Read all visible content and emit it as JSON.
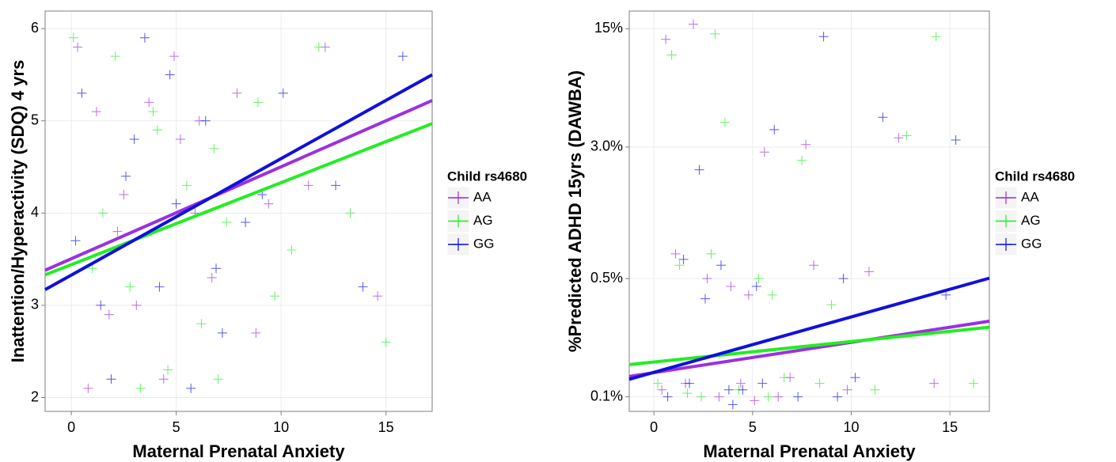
{
  "chart_data": [
    {
      "type": "scatter",
      "x_label": "Maternal Prenatal Anxiety",
      "y_label": "Inattention/Hyperactivity (SDQ) 4 yrs",
      "xlim": [
        -1.25,
        17.2
      ],
      "ylim": [
        1.85,
        6.19
      ],
      "xticks": [
        0,
        5,
        10,
        15
      ],
      "yticks": [
        2,
        3,
        4,
        5,
        6
      ],
      "ylog": false,
      "grid": true,
      "legend_title": "Child rs4680",
      "series": [
        {
          "name": "AA",
          "color": "#9b30e0",
          "x": [
            0.3,
            1.2,
            2.5,
            3.1,
            4.4,
            5.2,
            6.7,
            7.9,
            9.4,
            12.1,
            14.6,
            1.8,
            3.7,
            5.9,
            8.8,
            2.2,
            4.9,
            11.3,
            0.8,
            6.1
          ],
          "y": [
            5.8,
            5.1,
            4.2,
            3.0,
            2.2,
            4.8,
            3.3,
            5.3,
            4.1,
            5.8,
            3.1,
            2.9,
            5.2,
            4.0,
            2.7,
            3.8,
            5.7,
            4.3,
            2.1,
            5.0
          ],
          "fit": {
            "x": [
              -1.25,
              17.2
            ],
            "y": [
              3.38,
              5.22
            ]
          }
        },
        {
          "name": "AG",
          "color": "#22ee22",
          "x": [
            0.1,
            1.5,
            2.8,
            3.9,
            4.6,
            5.5,
            6.2,
            7.4,
            8.9,
            10.5,
            13.3,
            15.0,
            2.1,
            3.3,
            6.8,
            9.7,
            1.0,
            4.1,
            11.8,
            7.0
          ],
          "y": [
            5.9,
            4.0,
            3.2,
            5.1,
            2.3,
            4.3,
            2.8,
            3.9,
            5.2,
            3.6,
            4.0,
            2.6,
            5.7,
            2.1,
            4.7,
            3.1,
            3.4,
            4.9,
            5.8,
            2.2
          ],
          "fit": {
            "x": [
              -1.25,
              17.2
            ],
            "y": [
              3.33,
              4.97
            ]
          }
        },
        {
          "name": "GG",
          "color": "#1010dd",
          "x": [
            0.5,
            1.9,
            2.6,
            3.5,
            4.2,
            5.0,
            6.4,
            7.2,
            8.3,
            10.1,
            12.6,
            15.8,
            1.4,
            3.0,
            5.7,
            9.1,
            0.2,
            4.7,
            13.9,
            6.9
          ],
          "y": [
            5.3,
            2.2,
            4.4,
            5.9,
            3.2,
            4.1,
            5.0,
            2.7,
            3.9,
            5.3,
            4.3,
            5.7,
            3.0,
            4.8,
            2.1,
            4.2,
            3.7,
            5.5,
            3.2,
            3.4
          ],
          "fit": {
            "x": [
              -1.25,
              17.2
            ],
            "y": [
              3.17,
              5.5
            ]
          }
        }
      ]
    },
    {
      "type": "scatter",
      "x_label": "Maternal Prenatal Anxiety",
      "y_label": "%Predicted ADHD 15yrs (DAWBA)",
      "xlim": [
        -1.25,
        17.0
      ],
      "ylim": [
        0.082,
        19.1
      ],
      "xticks": [
        0,
        5,
        10,
        15
      ],
      "yticks": [
        {
          "value": 0.1,
          "label": "0.1%"
        },
        {
          "value": 0.5,
          "label": "0.5%"
        },
        {
          "value": 3.0,
          "label": "3.0%"
        },
        {
          "value": 15,
          "label": "15%"
        }
      ],
      "ylog": true,
      "grid": true,
      "legend_title": "Child rs4680",
      "series": [
        {
          "name": "AA",
          "color": "#9b30e0",
          "x": [
            0.4,
            1.6,
            2.7,
            3.3,
            4.8,
            5.6,
            6.9,
            8.1,
            9.8,
            12.4,
            14.2,
            2.0,
            3.9,
            5.1,
            7.7,
            10.9,
            1.1,
            4.4,
            0.6,
            6.3
          ],
          "y": [
            0.11,
            0.12,
            0.5,
            0.1,
            0.4,
            2.8,
            0.13,
            0.6,
            0.11,
            3.4,
            0.12,
            16,
            0.45,
            0.095,
            3.1,
            0.55,
            0.7,
            0.12,
            13,
            0.1
          ],
          "fit": {
            "x": [
              -1.25,
              17.0
            ],
            "y": [
              0.132,
              0.28
            ]
          }
        },
        {
          "name": "AG",
          "color": "#22ee22",
          "x": [
            0.2,
            1.3,
            2.4,
            3.6,
            4.3,
            5.3,
            6.6,
            7.5,
            9.0,
            11.2,
            14.3,
            0.9,
            2.9,
            5.8,
            8.4,
            12.8,
            3.1,
            6.0,
            1.7,
            16.2
          ],
          "y": [
            0.12,
            0.6,
            0.1,
            4.2,
            0.11,
            0.5,
            0.13,
            2.5,
            0.35,
            0.11,
            13.5,
            10.5,
            0.7,
            0.1,
            0.12,
            3.5,
            14,
            0.4,
            0.105,
            0.12
          ],
          "fit": {
            "x": [
              -1.25,
              17.0
            ],
            "y": [
              0.155,
              0.258
            ]
          }
        },
        {
          "name": "GG",
          "color": "#1010dd",
          "x": [
            0.7,
            1.8,
            2.3,
            3.4,
            4.5,
            5.2,
            6.1,
            7.3,
            8.6,
            9.6,
            11.6,
            15.3,
            1.5,
            3.8,
            5.5,
            9.3,
            2.6,
            4.0,
            10.2,
            14.8
          ],
          "y": [
            0.1,
            0.12,
            2.2,
            0.6,
            0.11,
            0.45,
            3.8,
            0.1,
            13.5,
            0.5,
            4.5,
            3.3,
            0.65,
            0.11,
            0.12,
            0.1,
            0.38,
            0.09,
            0.13,
            0.4
          ],
          "fit": {
            "x": [
              -1.25,
              17.0
            ],
            "y": [
              0.127,
              0.503
            ]
          }
        }
      ]
    }
  ]
}
